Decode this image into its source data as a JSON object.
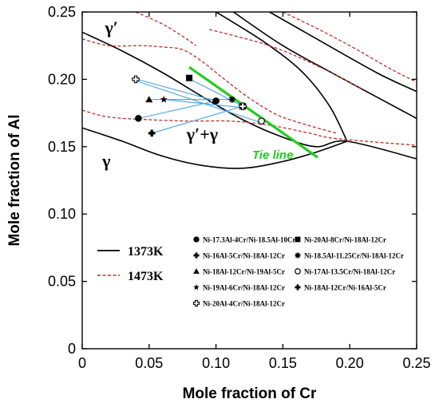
{
  "chart_data": {
    "type": "scatter",
    "title": "",
    "xlabel": "Mole fraction of Cr",
    "ylabel": "Mole fraction of Al",
    "xlim": [
      0,
      0.25
    ],
    "ylim": [
      0,
      0.25
    ],
    "xticks": [
      "0",
      "0.05",
      "0.10",
      "0.15",
      "0.20",
      "0.25"
    ],
    "yticks": [
      "0",
      "0.05",
      "0.10",
      "0.15",
      "0.20",
      "0.25"
    ],
    "grid": false,
    "colors": {
      "K1373": "#000000",
      "K1473": "#b5322a",
      "tie_lines": "#4aa3df",
      "tie_line_highlight": "#22cc22"
    },
    "region_labels": [
      {
        "text": "γ′",
        "x": 0.017,
        "y": 0.234
      },
      {
        "text": "γ′+γ",
        "x": 0.078,
        "y": 0.155
      },
      {
        "text": "γ",
        "x": 0.015,
        "y": 0.135
      }
    ],
    "phase_boundaries": [
      {
        "name": "1373K",
        "style": "solid",
        "points": [
          [
            0,
            0.164
          ],
          [
            0.03,
            0.154
          ],
          [
            0.06,
            0.143
          ],
          [
            0.09,
            0.136
          ],
          [
            0.12,
            0.134
          ],
          [
            0.15,
            0.139
          ],
          [
            0.175,
            0.146
          ],
          [
            0.198,
            0.154
          ]
        ]
      },
      {
        "name": "1373K",
        "style": "solid",
        "points": [
          [
            0,
            0.235
          ],
          [
            0.03,
            0.221
          ],
          [
            0.06,
            0.205
          ],
          [
            0.09,
            0.187
          ],
          [
            0.12,
            0.17
          ],
          [
            0.15,
            0.157
          ],
          [
            0.175,
            0.15
          ],
          [
            0.198,
            0.154
          ],
          [
            0.25,
            0.141
          ]
        ]
      },
      {
        "name": "1373K",
        "style": "solid",
        "points": [
          [
            0.198,
            0.154
          ],
          [
            0.185,
            0.18
          ],
          [
            0.165,
            0.205
          ],
          [
            0.14,
            0.225
          ],
          [
            0.115,
            0.241
          ],
          [
            0.1,
            0.25
          ]
        ]
      },
      {
        "name": "1373K",
        "style": "solid",
        "points": [
          [
            0.113,
            0.25
          ],
          [
            0.15,
            0.225
          ],
          [
            0.19,
            0.203
          ],
          [
            0.25,
            0.171
          ]
        ]
      },
      {
        "name": "1373K",
        "style": "solid",
        "points": [
          [
            0.14,
            0.25
          ],
          [
            0.17,
            0.233
          ],
          [
            0.22,
            0.205
          ],
          [
            0.25,
            0.191
          ]
        ]
      },
      {
        "name": "1473K",
        "style": "dashed",
        "points": [
          [
            0,
            0.177
          ],
          [
            0.02,
            0.172
          ],
          [
            0.05,
            0.17
          ],
          [
            0.08,
            0.169
          ],
          [
            0.11,
            0.169
          ],
          [
            0.14,
            0.166
          ],
          [
            0.17,
            0.16
          ],
          [
            0.19,
            0.156
          ],
          [
            0.25,
            0.151
          ]
        ]
      },
      {
        "name": "1473K",
        "style": "dashed",
        "points": [
          [
            0,
            0.23
          ],
          [
            0.02,
            0.225
          ],
          [
            0.045,
            0.225
          ],
          [
            0.06,
            0.224
          ],
          [
            0.075,
            0.222
          ],
          [
            0.09,
            0.213
          ],
          [
            0.105,
            0.201
          ],
          [
            0.125,
            0.186
          ],
          [
            0.145,
            0.174
          ],
          [
            0.165,
            0.167
          ],
          [
            0.19,
            0.16
          ]
        ]
      },
      {
        "name": "1473K",
        "style": "dashed",
        "points": [
          [
            0.04,
            0.25
          ],
          [
            0.06,
            0.241
          ],
          [
            0.075,
            0.232
          ],
          [
            0.085,
            0.225
          ]
        ]
      },
      {
        "name": "1473K",
        "style": "dashed",
        "points": [
          [
            0.095,
            0.237
          ],
          [
            0.115,
            0.232
          ],
          [
            0.14,
            0.225
          ],
          [
            0.165,
            0.215
          ],
          [
            0.19,
            0.203
          ],
          [
            0.21,
            0.192
          ]
        ]
      },
      {
        "name": "1473K",
        "style": "dashed",
        "points": [
          [
            0.15,
            0.25
          ],
          [
            0.175,
            0.238
          ],
          [
            0.2,
            0.225
          ],
          [
            0.23,
            0.208
          ],
          [
            0.25,
            0.198
          ]
        ]
      }
    ],
    "tie_line_highlight": {
      "label": "Tie line",
      "from": [
        0.08,
        0.209
      ],
      "to": [
        0.176,
        0.142
      ]
    },
    "tie_lines": [
      {
        "from": [
          0.042,
          0.171
        ],
        "to": [
          0.1,
          0.184
        ]
      },
      {
        "from": [
          0.052,
          0.16
        ],
        "to": [
          0.12,
          0.18
        ]
      },
      {
        "from": [
          0.05,
          0.185
        ],
        "to": [
          0.111,
          0.185
        ]
      },
      {
        "from": [
          0.061,
          0.185
        ],
        "to": [
          0.12,
          0.179
        ]
      },
      {
        "from": [
          0.041,
          0.2
        ],
        "to": [
          0.1,
          0.184
        ]
      },
      {
        "from": [
          0.079,
          0.201
        ],
        "to": [
          0.12,
          0.18
        ]
      },
      {
        "from": [
          0.04,
          0.199
        ],
        "to": [
          0.133,
          0.168
        ]
      }
    ],
    "series": [
      {
        "name": "Ni-17.3Al-4Cr/Ni-18.5Al-10Cr",
        "marker": "circle",
        "values": [
          [
            0.042,
            0.171
          ],
          [
            0.1,
            0.184
          ]
        ]
      },
      {
        "name": "Ni-20Al-8Cr/Ni-18Al-12Cr",
        "marker": "square",
        "values": [
          [
            0.08,
            0.201
          ],
          [
            0.12,
            0.18
          ]
        ]
      },
      {
        "name": "Ni-16Al-5Cr/Ni-18Al-12Cr",
        "marker": "cross",
        "values": [
          [
            0.052,
            0.16
          ],
          [
            0.12,
            0.18
          ]
        ]
      },
      {
        "name": "Ni-18.5Al-11.25Cr/Ni-18Al-12Cr",
        "marker": "asterisk",
        "values": [
          [
            0.112,
            0.185
          ],
          [
            0.12,
            0.18
          ]
        ]
      },
      {
        "name": "Ni-18Al-12Cr/Ni-19Al-5Cr",
        "marker": "triangle",
        "values": [
          [
            0.12,
            0.18
          ],
          [
            0.05,
            0.185
          ]
        ]
      },
      {
        "name": "Ni-17Al-13.5Cr/Ni-18Al-12Cr",
        "marker": "open-circle",
        "values": [
          [
            0.134,
            0.169
          ],
          [
            0.12,
            0.18
          ]
        ]
      },
      {
        "name": "Ni-19Al-6Cr/Ni-18Al-12Cr",
        "marker": "star",
        "values": [
          [
            0.061,
            0.185
          ],
          [
            0.12,
            0.18
          ]
        ]
      },
      {
        "name": "Ni-18Al-12Cr/Ni-16Al-5Cr",
        "marker": "filled-cross",
        "values": [
          [
            0.12,
            0.18
          ],
          [
            0.052,
            0.16
          ]
        ]
      },
      {
        "name": "Ni-20Al-4Cr/Ni-18Al-12Cr",
        "marker": "open-cross",
        "values": [
          [
            0.04,
            0.2
          ],
          [
            0.12,
            0.18
          ]
        ]
      }
    ],
    "legend": {
      "placement": "bottom",
      "lines": [
        {
          "label": "1373K",
          "style": "solid"
        },
        {
          "label": "1473K",
          "style": "dashed"
        }
      ]
    }
  }
}
